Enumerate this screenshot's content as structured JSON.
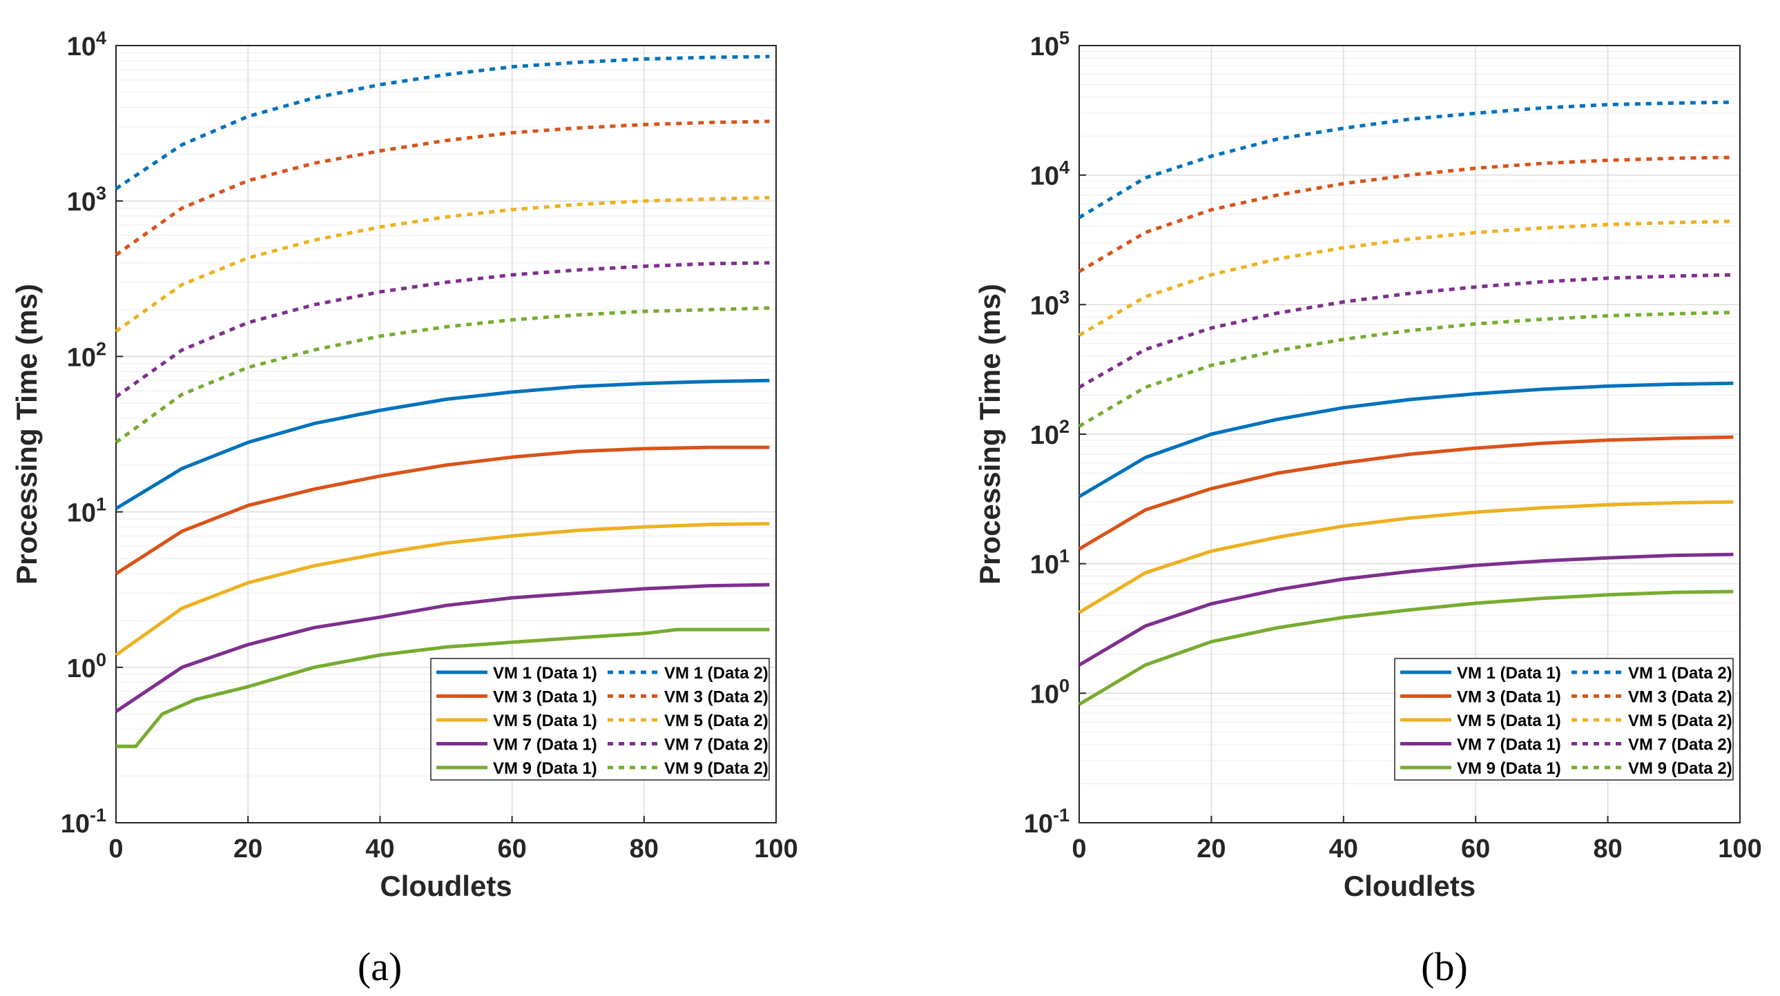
{
  "figure": {
    "panels": [
      "(a)",
      "(b)"
    ]
  },
  "chart_data": [
    {
      "type": "line",
      "panel_label": "(a)",
      "xlabel": "Cloudlets",
      "ylabel": "Processing Time (ms)",
      "xlim": [
        0,
        100
      ],
      "ylim": [
        0.1,
        10000
      ],
      "yscale": "log",
      "grid": true,
      "legend_position": "bottom-right",
      "x_ticks": [
        0,
        20,
        40,
        60,
        80,
        100
      ],
      "y_ticks": [
        {
          "exp": -1,
          "mantissa": "10",
          "power": "-1"
        },
        {
          "exp": 0,
          "mantissa": "10",
          "power": "0"
        },
        {
          "exp": 1,
          "mantissa": "10",
          "power": "1"
        },
        {
          "exp": 2,
          "mantissa": "10",
          "power": "2"
        },
        {
          "exp": 3,
          "mantissa": "10",
          "power": "3"
        },
        {
          "exp": 4,
          "mantissa": "10",
          "power": "4"
        }
      ],
      "series": [
        {
          "name": "VM 1 (Data 1)",
          "color": "#0072BD",
          "dash": "solid",
          "x": [
            0,
            10,
            20,
            30,
            40,
            50,
            60,
            70,
            80,
            90,
            99
          ],
          "values": [
            10.5,
            19,
            28,
            37,
            45,
            53,
            59,
            64,
            67,
            69,
            70
          ]
        },
        {
          "name": "VM 3 (Data 1)",
          "color": "#D95319",
          "dash": "solid",
          "x": [
            0,
            10,
            20,
            30,
            40,
            50,
            60,
            70,
            80,
            90,
            99
          ],
          "values": [
            4,
            7.5,
            11,
            14,
            17,
            20,
            22.5,
            24.5,
            25.5,
            26,
            26
          ]
        },
        {
          "name": "VM 5 (Data 1)",
          "color": "#EDB120",
          "dash": "solid",
          "x": [
            0,
            10,
            20,
            30,
            40,
            50,
            60,
            70,
            80,
            90,
            99
          ],
          "values": [
            1.2,
            2.4,
            3.5,
            4.5,
            5.4,
            6.3,
            7.0,
            7.6,
            8.0,
            8.3,
            8.4
          ]
        },
        {
          "name": "VM 7 (Data 1)",
          "color": "#7E2F8E",
          "dash": "solid",
          "x": [
            0,
            10,
            20,
            30,
            40,
            50,
            60,
            70,
            80,
            90,
            99
          ],
          "values": [
            0.52,
            1.0,
            1.4,
            1.8,
            2.1,
            2.5,
            2.8,
            3.0,
            3.2,
            3.35,
            3.4
          ]
        },
        {
          "name": "VM 9 (Data 1)",
          "color": "#77AC30",
          "dash": "solid",
          "x": [
            0,
            3,
            7,
            12,
            20,
            30,
            40,
            50,
            60,
            70,
            80,
            85,
            90,
            99
          ],
          "values": [
            0.31,
            0.31,
            0.5,
            0.62,
            0.75,
            1.0,
            1.2,
            1.35,
            1.45,
            1.55,
            1.65,
            1.75,
            1.75,
            1.75
          ]
        },
        {
          "name": "VM 1 (Data 2)",
          "color": "#0072BD",
          "dash": "dotted",
          "x": [
            0,
            10,
            20,
            30,
            40,
            50,
            60,
            70,
            80,
            90,
            99
          ],
          "values": [
            1200,
            2300,
            3500,
            4600,
            5600,
            6500,
            7300,
            7800,
            8200,
            8400,
            8500
          ]
        },
        {
          "name": "VM 3 (Data 2)",
          "color": "#D95319",
          "dash": "dotted",
          "x": [
            0,
            10,
            20,
            30,
            40,
            50,
            60,
            70,
            80,
            90,
            99
          ],
          "values": [
            450,
            900,
            1350,
            1750,
            2100,
            2450,
            2750,
            2950,
            3100,
            3200,
            3250
          ]
        },
        {
          "name": "VM 5 (Data 2)",
          "color": "#EDB120",
          "dash": "dotted",
          "x": [
            0,
            10,
            20,
            30,
            40,
            50,
            60,
            70,
            80,
            90,
            99
          ],
          "values": [
            145,
            290,
            430,
            560,
            680,
            790,
            880,
            950,
            1000,
            1030,
            1050
          ]
        },
        {
          "name": "VM 7 (Data 2)",
          "color": "#7E2F8E",
          "dash": "dotted",
          "x": [
            0,
            10,
            20,
            30,
            40,
            50,
            60,
            70,
            80,
            90,
            99
          ],
          "values": [
            55,
            110,
            165,
            215,
            260,
            300,
            335,
            360,
            380,
            395,
            400
          ]
        },
        {
          "name": "VM 9 (Data 2)",
          "color": "#77AC30",
          "dash": "dotted",
          "x": [
            0,
            10,
            20,
            30,
            40,
            50,
            60,
            70,
            80,
            90,
            99
          ],
          "values": [
            28,
            57,
            85,
            110,
            135,
            155,
            172,
            185,
            195,
            200,
            205
          ]
        }
      ]
    },
    {
      "type": "line",
      "panel_label": "(b)",
      "xlabel": "Cloudlets",
      "ylabel": "Processing Time (ms)",
      "xlim": [
        0,
        100
      ],
      "ylim": [
        0.1,
        100000
      ],
      "yscale": "log",
      "grid": true,
      "legend_position": "bottom-right",
      "x_ticks": [
        0,
        20,
        40,
        60,
        80,
        100
      ],
      "y_ticks": [
        {
          "exp": -1,
          "mantissa": "10",
          "power": "-1"
        },
        {
          "exp": 0,
          "mantissa": "10",
          "power": "0"
        },
        {
          "exp": 1,
          "mantissa": "10",
          "power": "1"
        },
        {
          "exp": 2,
          "mantissa": "10",
          "power": "2"
        },
        {
          "exp": 3,
          "mantissa": "10",
          "power": "3"
        },
        {
          "exp": 4,
          "mantissa": "10",
          "power": "4"
        },
        {
          "exp": 5,
          "mantissa": "10",
          "power": "5"
        }
      ],
      "series": [
        {
          "name": "VM 1 (Data 1)",
          "color": "#0072BD",
          "dash": "solid",
          "x": [
            0,
            10,
            20,
            30,
            40,
            50,
            60,
            70,
            80,
            90,
            99
          ],
          "values": [
            33,
            66,
            100,
            130,
            160,
            185,
            205,
            222,
            235,
            243,
            247
          ]
        },
        {
          "name": "VM 3 (Data 1)",
          "color": "#D95319",
          "dash": "solid",
          "x": [
            0,
            10,
            20,
            30,
            40,
            50,
            60,
            70,
            80,
            90,
            99
          ],
          "values": [
            13,
            26,
            38,
            50,
            60,
            70,
            78,
            85,
            90,
            93,
            95
          ]
        },
        {
          "name": "VM 5 (Data 1)",
          "color": "#EDB120",
          "dash": "solid",
          "x": [
            0,
            10,
            20,
            30,
            40,
            50,
            60,
            70,
            80,
            90,
            99
          ],
          "values": [
            4.2,
            8.5,
            12.5,
            16,
            19.5,
            22.5,
            25,
            27,
            28.5,
            29.5,
            30
          ]
        },
        {
          "name": "VM 7 (Data 1)",
          "color": "#7E2F8E",
          "dash": "solid",
          "x": [
            0,
            10,
            20,
            30,
            40,
            50,
            60,
            70,
            80,
            90,
            99
          ],
          "values": [
            1.65,
            3.3,
            4.9,
            6.3,
            7.6,
            8.7,
            9.7,
            10.5,
            11.1,
            11.6,
            11.8
          ]
        },
        {
          "name": "VM 9 (Data 1)",
          "color": "#77AC30",
          "dash": "solid",
          "x": [
            0,
            10,
            20,
            30,
            40,
            50,
            60,
            70,
            80,
            90,
            99
          ],
          "values": [
            0.82,
            1.65,
            2.5,
            3.2,
            3.85,
            4.4,
            4.95,
            5.4,
            5.75,
            6.0,
            6.1
          ]
        },
        {
          "name": "VM 1 (Data 2)",
          "color": "#0072BD",
          "dash": "dotted",
          "x": [
            0,
            10,
            20,
            30,
            40,
            50,
            60,
            70,
            80,
            90,
            99
          ],
          "values": [
            4700,
            9500,
            14000,
            19000,
            23000,
            27000,
            30000,
            33000,
            35000,
            36000,
            36500
          ]
        },
        {
          "name": "VM 3 (Data 2)",
          "color": "#D95319",
          "dash": "dotted",
          "x": [
            0,
            10,
            20,
            30,
            40,
            50,
            60,
            70,
            80,
            90,
            99
          ],
          "values": [
            1800,
            3600,
            5400,
            7000,
            8600,
            10000,
            11300,
            12300,
            13000,
            13500,
            13700
          ]
        },
        {
          "name": "VM 5 (Data 2)",
          "color": "#EDB120",
          "dash": "dotted",
          "x": [
            0,
            10,
            20,
            30,
            40,
            50,
            60,
            70,
            80,
            90,
            99
          ],
          "values": [
            580,
            1150,
            1700,
            2250,
            2750,
            3200,
            3600,
            3900,
            4150,
            4300,
            4400
          ]
        },
        {
          "name": "VM 7 (Data 2)",
          "color": "#7E2F8E",
          "dash": "dotted",
          "x": [
            0,
            10,
            20,
            30,
            40,
            50,
            60,
            70,
            80,
            90,
            99
          ],
          "values": [
            230,
            450,
            660,
            860,
            1050,
            1220,
            1370,
            1500,
            1600,
            1660,
            1700
          ]
        },
        {
          "name": "VM 9 (Data 2)",
          "color": "#77AC30",
          "dash": "dotted",
          "x": [
            0,
            10,
            20,
            30,
            40,
            50,
            60,
            70,
            80,
            90,
            99
          ],
          "values": [
            115,
            230,
            340,
            440,
            540,
            630,
            710,
            770,
            820,
            850,
            870
          ]
        }
      ]
    }
  ]
}
